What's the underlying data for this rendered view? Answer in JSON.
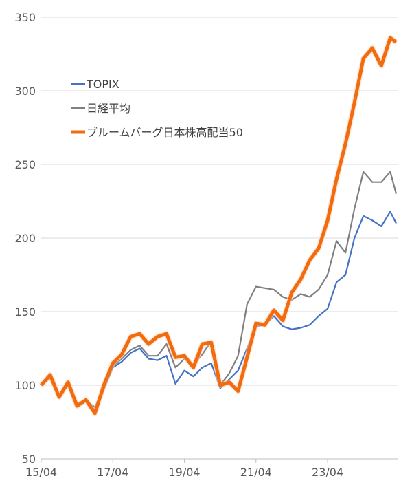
{
  "chart_data": {
    "type": "line",
    "title": "",
    "xlabel": "",
    "ylabel": "",
    "ylim": [
      50,
      350
    ],
    "yticks": [
      50,
      100,
      150,
      200,
      250,
      300,
      350
    ],
    "xlim": [
      "2015-04",
      "2025-03"
    ],
    "xticks": [
      {
        "date": "2015-04",
        "label": "15/04"
      },
      {
        "date": "2017-04",
        "label": "17/04"
      },
      {
        "date": "2019-04",
        "label": "19/04"
      },
      {
        "date": "2021-04",
        "label": "21/04"
      },
      {
        "date": "2023-04",
        "label": "23/04"
      }
    ],
    "grid": true,
    "legend_position": "top-left",
    "x": [
      "2015-04",
      "2015-07",
      "2015-10",
      "2016-01",
      "2016-04",
      "2016-07",
      "2016-10",
      "2017-01",
      "2017-04",
      "2017-07",
      "2017-10",
      "2018-01",
      "2018-04",
      "2018-07",
      "2018-10",
      "2019-01",
      "2019-04",
      "2019-07",
      "2019-10",
      "2020-01",
      "2020-04",
      "2020-07",
      "2020-10",
      "2021-01",
      "2021-04",
      "2021-07",
      "2021-10",
      "2022-01",
      "2022-04",
      "2022-07",
      "2022-10",
      "2023-01",
      "2023-04",
      "2023-07",
      "2023-10",
      "2024-01",
      "2024-04",
      "2024-07",
      "2024-10",
      "2025-01",
      "2025-03"
    ],
    "series": [
      {
        "name": "TOPIX",
        "color": "#4472C4",
        "width": 2.2,
        "values": [
          100,
          105,
          92,
          100,
          86,
          90,
          83,
          97,
          112,
          116,
          122,
          125,
          118,
          117,
          120,
          101,
          110,
          106,
          112,
          115,
          98,
          104,
          110,
          125,
          140,
          141,
          147,
          140,
          138,
          139,
          141,
          147,
          152,
          170,
          175,
          200,
          215,
          212,
          208,
          218,
          210
        ]
      },
      {
        "name": "日経平均",
        "color": "#808080",
        "width": 2.2,
        "values": [
          100,
          106,
          92,
          101,
          86,
          90,
          85,
          98,
          113,
          118,
          124,
          127,
          120,
          120,
          128,
          112,
          118,
          114,
          121,
          130,
          100,
          108,
          120,
          155,
          167,
          166,
          165,
          160,
          158,
          162,
          160,
          165,
          175,
          198,
          190,
          220,
          245,
          238,
          238,
          245,
          230
        ]
      },
      {
        "name": "ブルームバーグ日本株高配当50",
        "color": "#F26B0F",
        "width": 5,
        "values": [
          100,
          107,
          92,
          102,
          86,
          90,
          81,
          100,
          115,
          121,
          133,
          135,
          128,
          133,
          135,
          119,
          120,
          112,
          128,
          129,
          100,
          102,
          96,
          119,
          142,
          141,
          151,
          144,
          163,
          172,
          185,
          193,
          212,
          240,
          264,
          292,
          322,
          329,
          317,
          336,
          333
        ]
      }
    ]
  }
}
